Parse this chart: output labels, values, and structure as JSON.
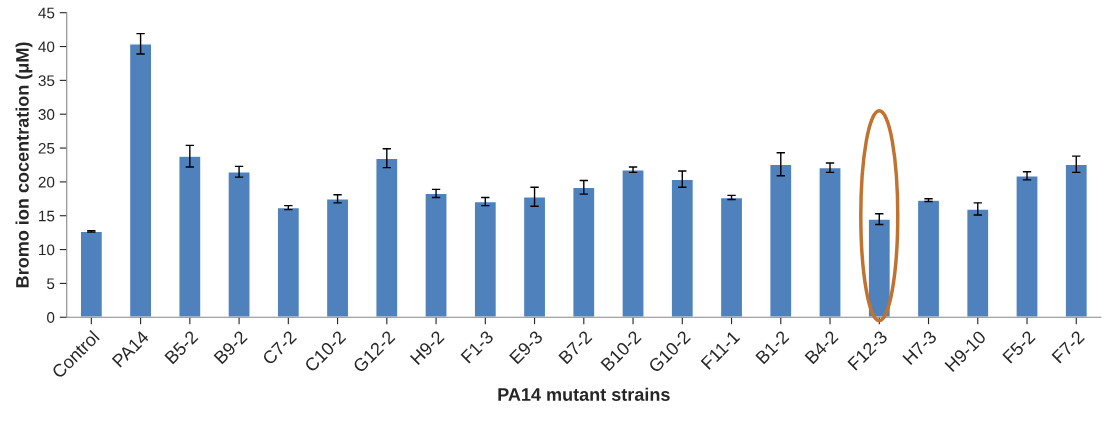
{
  "chart_data": {
    "type": "bar",
    "xlabel": "PA14 mutant strains",
    "ylabel": "Bromo ion cocentration (μM)",
    "categories": [
      "Control",
      "PA14",
      "B5-2",
      "B9-2",
      "C7-2",
      "C10-2",
      "G12-2",
      "H9-2",
      "F1-3",
      "E9-3",
      "B7-2",
      "B10-2",
      "G10-2",
      "F11-1",
      "B1-2",
      "B4-2",
      "F12-3",
      "H7-3",
      "H9-10",
      "F5-2",
      "F7-2"
    ],
    "values": [
      12.7,
      40.4,
      23.8,
      21.5,
      16.2,
      17.5,
      23.5,
      18.3,
      17.1,
      17.8,
      19.2,
      21.8,
      20.4,
      17.7,
      22.6,
      22.1,
      14.5,
      17.3,
      16.0,
      20.9,
      22.6
    ],
    "errors": [
      0.1,
      1.5,
      1.6,
      0.8,
      0.3,
      0.6,
      1.4,
      0.6,
      0.6,
      1.4,
      1.0,
      0.4,
      1.2,
      0.3,
      1.7,
      0.7,
      0.8,
      0.2,
      0.9,
      0.6,
      1.2
    ],
    "color": "#4f81bd",
    "ylim": [
      0,
      45
    ],
    "yticks": [
      0,
      5,
      10,
      15,
      20,
      25,
      30,
      35,
      40,
      45
    ],
    "grid": false,
    "legend": false
  }
}
